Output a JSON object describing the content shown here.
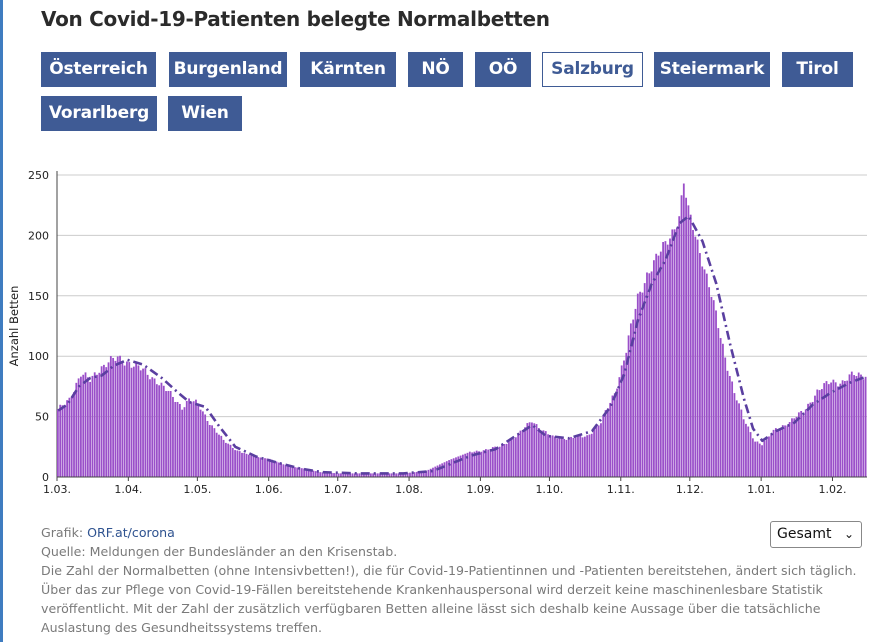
{
  "title": "Von Covid-19-Patienten belegte Normalbetten",
  "buttons": [
    "Österreich",
    "Burgenland",
    "Kärnten",
    "NÖ",
    "OÖ",
    "Salzburg",
    "Steiermark",
    "Tirol",
    "Vorarlberg",
    "Wien"
  ],
  "active_button": "Salzburg",
  "colors": {
    "bar": "#9a4fc9",
    "avg_line": "#5a3fa0",
    "button": "#3f5b95",
    "grid": "#cccccc"
  },
  "footer": {
    "grafik_label": "Grafik:",
    "grafik_link": "ORF.at/corona",
    "quelle": "Quelle: Meldungen der Bundesländer an den Krisenstab.",
    "note": "Die Zahl der Normalbetten (ohne Intensivbetten!), die für Covid-19-Patientinnen und -Patienten bereitstehen, ändert sich täglich. Über das zur Pflege von Covid-19-Fällen bereitstehende Krankenhauspersonal wird derzeit keine maschinenlesbare Statistik veröffentlicht. Mit der Zahl der zusätzlich verfügbaren Betten alleine lässt sich deshalb keine Aussage über die tatsächliche Auslastung des Gesundheitssystems treffen."
  },
  "select": {
    "value": "Gesamt",
    "icon": "chevron-down-icon"
  },
  "chart_data": {
    "type": "bar",
    "ylabel": "Anzahl Betten",
    "ylim": [
      0,
      250
    ],
    "yticks": [
      0,
      50,
      100,
      150,
      200,
      250
    ],
    "grid": true,
    "xticks": [
      "1.03.",
      "1.04.",
      "1.05.",
      "1.06.",
      "1.07.",
      "1.08.",
      "1.09.",
      "1.10.",
      "1.11.",
      "1.12.",
      "1.01.",
      "1.02."
    ],
    "xtick_day_index": [
      0,
      31,
      61,
      92,
      122,
      153,
      184,
      214,
      245,
      275,
      306,
      337
    ],
    "num_days": 352,
    "daily_bar_keypoints": [
      [
        0,
        55
      ],
      [
        5,
        65
      ],
      [
        10,
        85
      ],
      [
        14,
        80
      ],
      [
        18,
        90
      ],
      [
        22,
        95
      ],
      [
        26,
        98
      ],
      [
        31,
        95
      ],
      [
        37,
        88
      ],
      [
        43,
        80
      ],
      [
        49,
        68
      ],
      [
        54,
        58
      ],
      [
        57,
        64
      ],
      [
        61,
        60
      ],
      [
        66,
        45
      ],
      [
        72,
        30
      ],
      [
        78,
        22
      ],
      [
        85,
        17
      ],
      [
        92,
        15
      ],
      [
        100,
        9
      ],
      [
        107,
        7
      ],
      [
        114,
        4
      ],
      [
        122,
        3
      ],
      [
        135,
        3
      ],
      [
        150,
        3
      ],
      [
        160,
        5
      ],
      [
        170,
        14
      ],
      [
        178,
        20
      ],
      [
        184,
        22
      ],
      [
        192,
        25
      ],
      [
        200,
        35
      ],
      [
        206,
        47
      ],
      [
        211,
        38
      ],
      [
        215,
        33
      ],
      [
        222,
        32
      ],
      [
        230,
        34
      ],
      [
        236,
        45
      ],
      [
        242,
        70
      ],
      [
        247,
        105
      ],
      [
        252,
        148
      ],
      [
        256,
        168
      ],
      [
        260,
        180
      ],
      [
        266,
        200
      ],
      [
        270,
        215
      ],
      [
        272,
        243
      ],
      [
        274,
        220
      ],
      [
        278,
        195
      ],
      [
        284,
        150
      ],
      [
        290,
        100
      ],
      [
        294,
        70
      ],
      [
        298,
        48
      ],
      [
        303,
        30
      ],
      [
        306,
        27
      ],
      [
        312,
        40
      ],
      [
        318,
        45
      ],
      [
        324,
        55
      ],
      [
        330,
        70
      ],
      [
        336,
        80
      ],
      [
        341,
        78
      ],
      [
        346,
        85
      ],
      [
        351,
        85
      ]
    ],
    "series": [
      {
        "type": "line",
        "style": "dash-dot",
        "keypoints": [
          [
            0,
            55
          ],
          [
            4,
            60
          ],
          [
            9,
            75
          ],
          [
            14,
            82
          ],
          [
            19,
            84
          ],
          [
            24,
            92
          ],
          [
            30,
            97
          ],
          [
            37,
            93
          ],
          [
            45,
            82
          ],
          [
            52,
            70
          ],
          [
            57,
            62
          ],
          [
            64,
            58
          ],
          [
            70,
            42
          ],
          [
            77,
            25
          ],
          [
            86,
            17
          ],
          [
            95,
            12
          ],
          [
            105,
            7
          ],
          [
            115,
            4
          ],
          [
            130,
            3
          ],
          [
            150,
            3
          ],
          [
            163,
            5
          ],
          [
            172,
            12
          ],
          [
            180,
            18
          ],
          [
            190,
            23
          ],
          [
            198,
            33
          ],
          [
            206,
            43
          ],
          [
            212,
            34
          ],
          [
            222,
            32
          ],
          [
            232,
            38
          ],
          [
            240,
            58
          ],
          [
            246,
            85
          ],
          [
            252,
            130
          ],
          [
            258,
            160
          ],
          [
            264,
            180
          ],
          [
            270,
            210
          ],
          [
            274,
            216
          ],
          [
            280,
            195
          ],
          [
            286,
            160
          ],
          [
            292,
            110
          ],
          [
            298,
            65
          ],
          [
            302,
            40
          ],
          [
            306,
            30
          ],
          [
            312,
            38
          ],
          [
            320,
            45
          ],
          [
            328,
            60
          ],
          [
            336,
            70
          ],
          [
            344,
            78
          ],
          [
            351,
            83
          ]
        ]
      }
    ]
  }
}
